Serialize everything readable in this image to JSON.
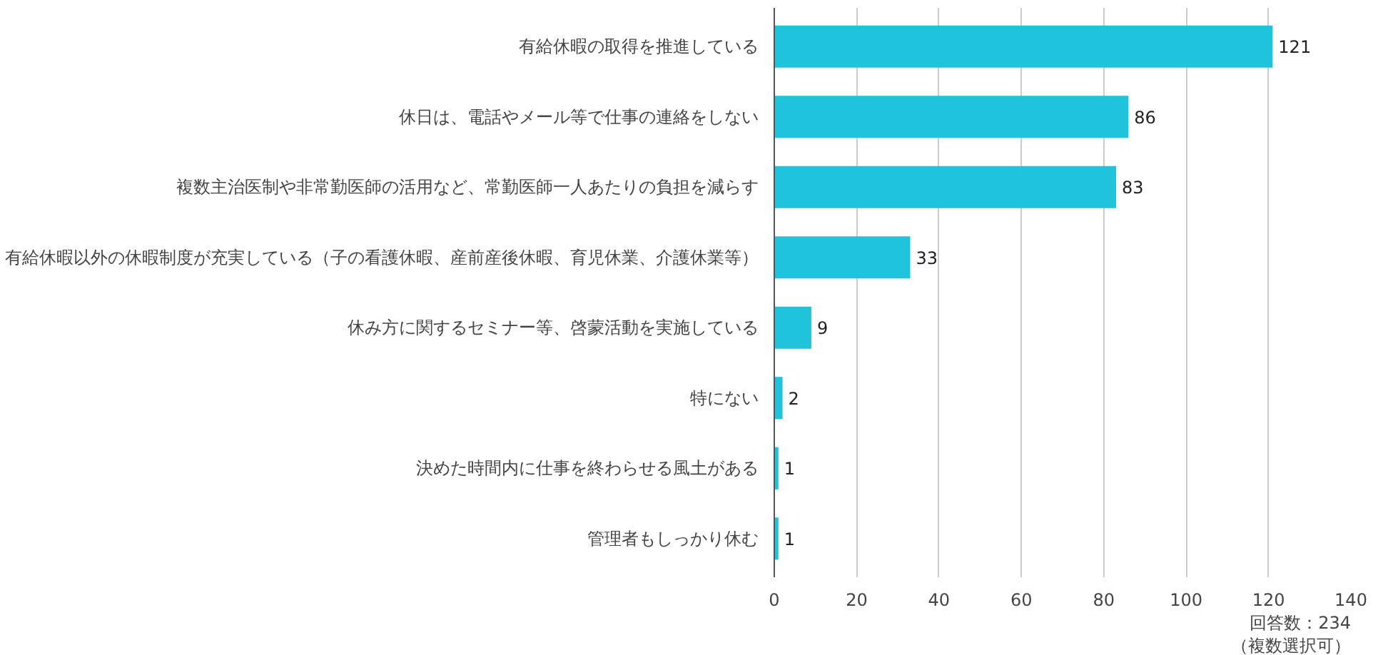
{
  "chart_data": {
    "type": "bar",
    "orientation": "horizontal",
    "categories": [
      "有給休暇の取得を推進している",
      "休日は、電話やメール等で仕事の連絡をしない",
      "複数主治医制や非常勤医師の活用など、常勤医師一人あたりの負担を減らす",
      "有給休暇以外の休暇制度が充実している（子の看護休暇、産前産後休暇、育児休業、介護休業等）",
      "休み方に関するセミナー等、啓蒙活動を実施している",
      "特にない",
      "決めた時間内に仕事を終わらせる風土がある",
      "管理者もしっかり休む"
    ],
    "values": [
      121,
      86,
      83,
      33,
      9,
      2,
      1,
      1
    ],
    "color": "#1fc3dc",
    "xlim": [
      0,
      140
    ],
    "xticks": [
      0,
      20,
      40,
      60,
      80,
      100,
      120,
      140
    ],
    "grid": "x",
    "data_labels": true,
    "annotations": [
      "回答数：234",
      "（複数選択可）"
    ]
  }
}
